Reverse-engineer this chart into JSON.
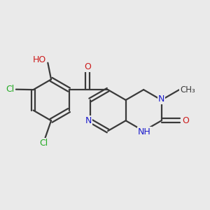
{
  "background_color": "#eaeaea",
  "bond_color": "#3a3a3a",
  "bond_width": 1.6,
  "atom_colors": {
    "C": "#3a3a3a",
    "N": "#1a1acc",
    "O": "#cc1a1a",
    "Cl": "#22aa22",
    "H": "#6a8a8a"
  },
  "font_size": 9.0,
  "xlim": [
    -2.9,
    3.3
  ],
  "ylim": [
    -2.0,
    1.9
  ]
}
